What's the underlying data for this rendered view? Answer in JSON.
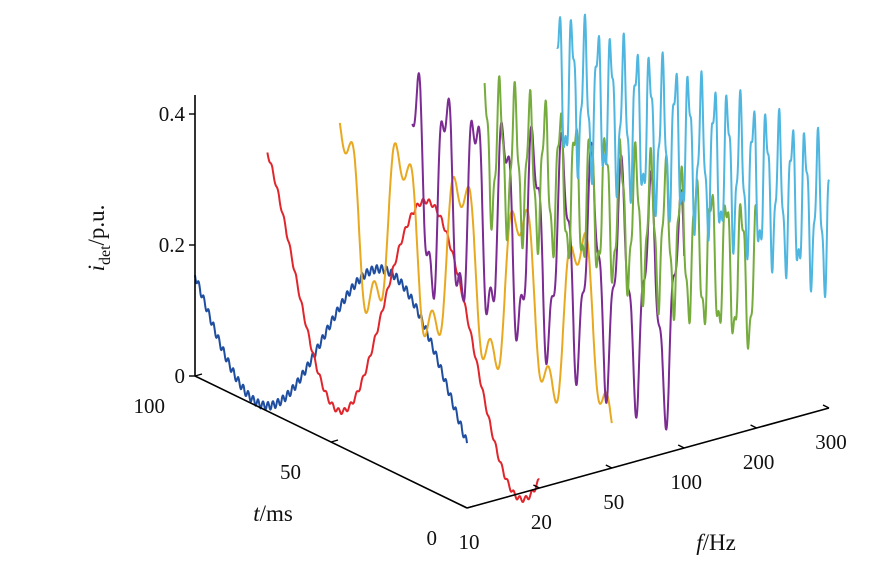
{
  "chart_data": {
    "type": "line",
    "title": "",
    "projection": "3d-waterfall",
    "axes": {
      "y": {
        "label": {
          "main": "i",
          "sub": "det",
          "unit": "/p.u."
        },
        "ticks": [
          {
            "value": 0,
            "label": "0"
          },
          {
            "value": 0.2,
            "label": "0.2"
          },
          {
            "value": 0.4,
            "label": "0.4"
          }
        ],
        "range": [
          0,
          0.42
        ]
      },
      "t": {
        "label": {
          "main": "t",
          "unit": "/ms"
        },
        "ticks": [
          {
            "value": 0,
            "label": "0"
          },
          {
            "value": 50,
            "label": "50"
          },
          {
            "value": 100,
            "label": "100"
          }
        ],
        "range": [
          0,
          100
        ]
      },
      "f": {
        "label": {
          "main": "f",
          "unit": "/Hz"
        },
        "scale": "categorical",
        "ticks": [
          {
            "value": 10,
            "label": "10"
          },
          {
            "value": 20,
            "label": "20"
          },
          {
            "value": 50,
            "label": "50"
          },
          {
            "value": 100,
            "label": "100"
          },
          {
            "value": 200,
            "label": "200"
          },
          {
            "value": 300,
            "label": "300"
          }
        ]
      }
    },
    "series": [
      {
        "f": 10,
        "color": "#1f4ea0",
        "offset": 0.154,
        "amplitude": 0.149,
        "cycles": 1.06,
        "phase": 0.5,
        "ripple_amp": 0.006,
        "ripple_cycles": 55
      },
      {
        "f": 20,
        "color": "#e0262c",
        "offset": 0.162,
        "amplitude": 0.193,
        "cycles": 1.5,
        "phase": 0.36,
        "ripple_amp": 0.004,
        "ripple_cycles": 45
      },
      {
        "f": 50,
        "color": "#e8a921",
        "offset": 0.197,
        "amplitude": 0.135,
        "cycles": 4.6,
        "phase": 0.2,
        "ripple_amp": 0.045,
        "ripple_cycles": 14
      },
      {
        "f": 100,
        "color": "#7b2b91",
        "offset": 0.205,
        "amplitude": 0.15,
        "cycles": 9.3,
        "phase": 0.1,
        "ripple_amp": 0.045,
        "ripple_cycles": 27
      },
      {
        "f": 200,
        "color": "#76ab3e",
        "offset": 0.225,
        "amplitude": 0.1,
        "cycles": 18,
        "phase": 0.25,
        "ripple_amp": 0.025,
        "ripple_cycles": 52
      },
      {
        "f": 300,
        "color": "#4fb6e0",
        "offset": 0.29,
        "amplitude": 0.1,
        "cycles": 21,
        "phase": 0.1,
        "ripple_amp": 0.03,
        "ripple_cycles": 56
      }
    ],
    "grid": false,
    "legend": "none"
  }
}
